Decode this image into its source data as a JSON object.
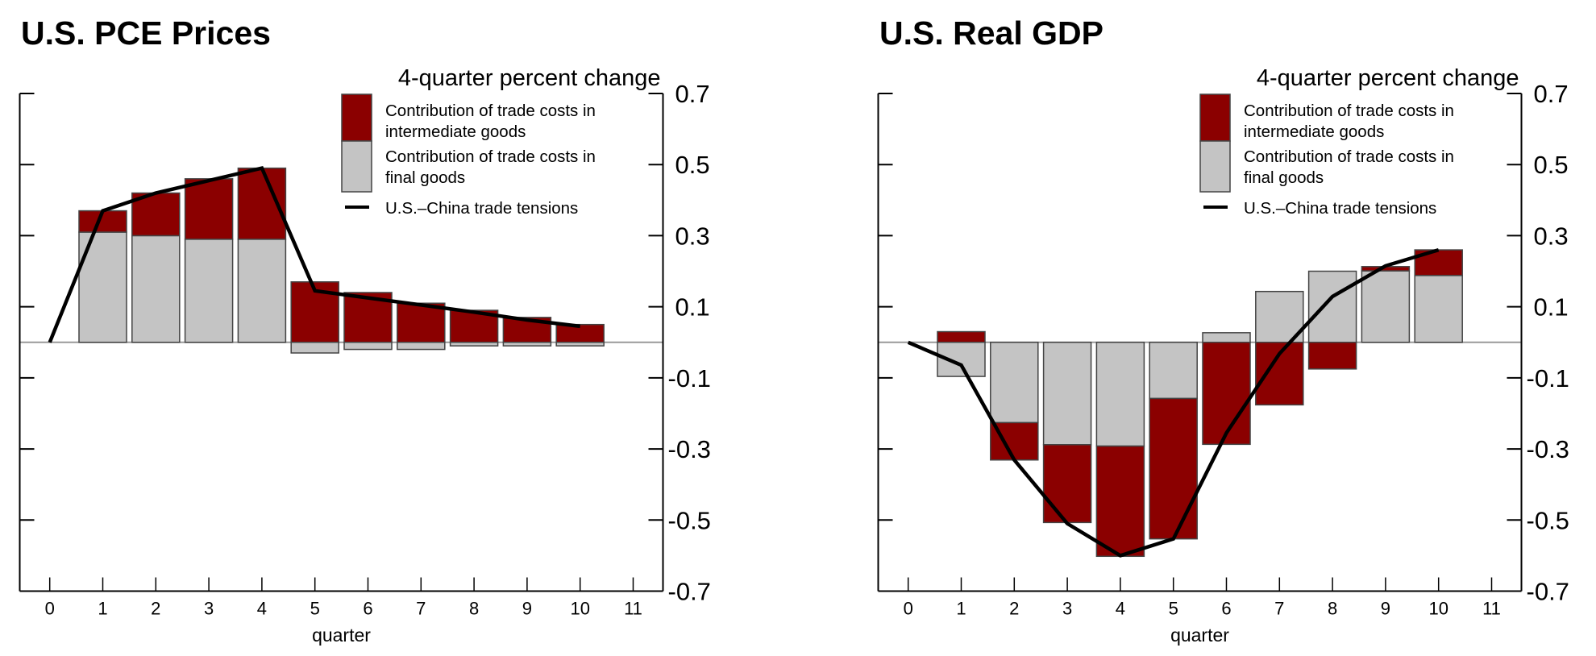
{
  "colors": {
    "intermediate": "#8B0000",
    "final": "#C4C4C4",
    "line": "#000000",
    "bar_edge": "#444444",
    "zero_line": "#9a9a9a",
    "axis": "#000000"
  },
  "chart_data": [
    {
      "type": "bar",
      "title": "U.S. PCE Prices",
      "ylabel": "4-quarter percent change",
      "xlabel": "quarter",
      "ylim": [
        -0.7,
        0.7
      ],
      "xlim": [
        -0.5,
        11.5
      ],
      "yticks": [
        0.7,
        0.5,
        0.3,
        0.1,
        -0.1,
        -0.3,
        -0.5,
        -0.7
      ],
      "ytick_labels": [
        "0.7",
        "0.5",
        "0.3",
        "0.1",
        "-0.1",
        "-0.3",
        "-0.5",
        "-0.7"
      ],
      "y_axis_side": "right",
      "x": [
        0,
        1,
        2,
        3,
        4,
        5,
        6,
        7,
        8,
        9,
        10,
        11
      ],
      "xtick_labels": [
        "0",
        "1",
        "2",
        "3",
        "4",
        "5",
        "6",
        "7",
        "8",
        "9",
        "10",
        "11"
      ],
      "stacked": true,
      "legend_position": "top-right",
      "legend": [
        {
          "key": "intermediate",
          "lines": [
            "Contribution of trade costs in",
            "intermediate goods"
          ]
        },
        {
          "key": "final",
          "lines": [
            "Contribution of trade costs in",
            "final goods"
          ]
        },
        {
          "key": "line",
          "lines": [
            "U.S.–China trade tensions"
          ]
        }
      ],
      "series": [
        {
          "name": "Contribution of trade costs in final goods",
          "key": "final",
          "kind": "bar",
          "x": [
            1,
            2,
            3,
            4,
            5,
            6,
            7,
            8,
            9,
            10
          ],
          "values": [
            0.31,
            0.3,
            0.29,
            0.29,
            -0.03,
            -0.02,
            -0.02,
            -0.01,
            -0.01,
            -0.01
          ]
        },
        {
          "name": "Contribution of trade costs in intermediate goods",
          "key": "intermediate",
          "kind": "bar",
          "x": [
            1,
            2,
            3,
            4,
            5,
            6,
            7,
            8,
            9,
            10
          ],
          "values": [
            0.06,
            0.12,
            0.17,
            0.2,
            0.17,
            0.14,
            0.11,
            0.09,
            0.07,
            0.05
          ]
        },
        {
          "name": "U.S.–China trade tensions",
          "key": "line",
          "kind": "line",
          "x": [
            0,
            1,
            2,
            3,
            4,
            5,
            6,
            7,
            8,
            9,
            10
          ],
          "values": [
            0.0,
            0.37,
            0.42,
            0.455,
            0.49,
            0.145,
            0.125,
            0.105,
            0.085,
            0.063,
            0.045
          ]
        }
      ]
    },
    {
      "type": "bar",
      "title": "U.S. Real GDP",
      "ylabel": "4-quarter percent change",
      "xlabel": "quarter",
      "ylim": [
        -0.7,
        0.7
      ],
      "xlim": [
        -0.5,
        11.5
      ],
      "yticks": [
        0.7,
        0.5,
        0.3,
        0.1,
        -0.1,
        -0.3,
        -0.5,
        -0.7
      ],
      "ytick_labels": [
        "0.7",
        "0.5",
        "0.3",
        "0.1",
        "-0.1",
        "-0.3",
        "-0.5",
        "-0.7"
      ],
      "y_axis_side": "right",
      "x": [
        0,
        1,
        2,
        3,
        4,
        5,
        6,
        7,
        8,
        9,
        10,
        11
      ],
      "xtick_labels": [
        "0",
        "1",
        "2",
        "3",
        "4",
        "5",
        "6",
        "7",
        "8",
        "9",
        "10",
        "11"
      ],
      "stacked": true,
      "legend_position": "top-right",
      "legend": [
        {
          "key": "intermediate",
          "lines": [
            "Contribution of trade costs in",
            "intermediate goods"
          ]
        },
        {
          "key": "final",
          "lines": [
            "Contribution of trade costs in",
            "final goods"
          ]
        },
        {
          "key": "line",
          "lines": [
            "U.S.–China trade tensions"
          ]
        }
      ],
      "series": [
        {
          "name": "Contribution of trade costs in final goods",
          "key": "final",
          "kind": "bar",
          "x": [
            1,
            2,
            3,
            4,
            5,
            6,
            7,
            8,
            9,
            10
          ],
          "values": [
            -0.096,
            -0.226,
            -0.288,
            -0.292,
            -0.158,
            0.027,
            0.143,
            0.2,
            0.201,
            0.188
          ]
        },
        {
          "name": "Contribution of trade costs in intermediate goods",
          "key": "intermediate",
          "kind": "bar",
          "x": [
            1,
            2,
            3,
            4,
            5,
            6,
            7,
            8,
            9,
            10
          ],
          "values": [
            0.03,
            -0.105,
            -0.219,
            -0.31,
            -0.395,
            -0.287,
            -0.176,
            -0.075,
            0.012,
            0.072
          ]
        },
        {
          "name": "U.S.–China trade tensions",
          "key": "line",
          "kind": "line",
          "x": [
            0,
            1,
            2,
            3,
            4,
            5,
            6,
            7,
            8,
            9,
            10
          ],
          "values": [
            0.0,
            -0.064,
            -0.331,
            -0.51,
            -0.6,
            -0.553,
            -0.255,
            -0.032,
            0.129,
            0.215,
            0.26
          ]
        }
      ]
    }
  ]
}
